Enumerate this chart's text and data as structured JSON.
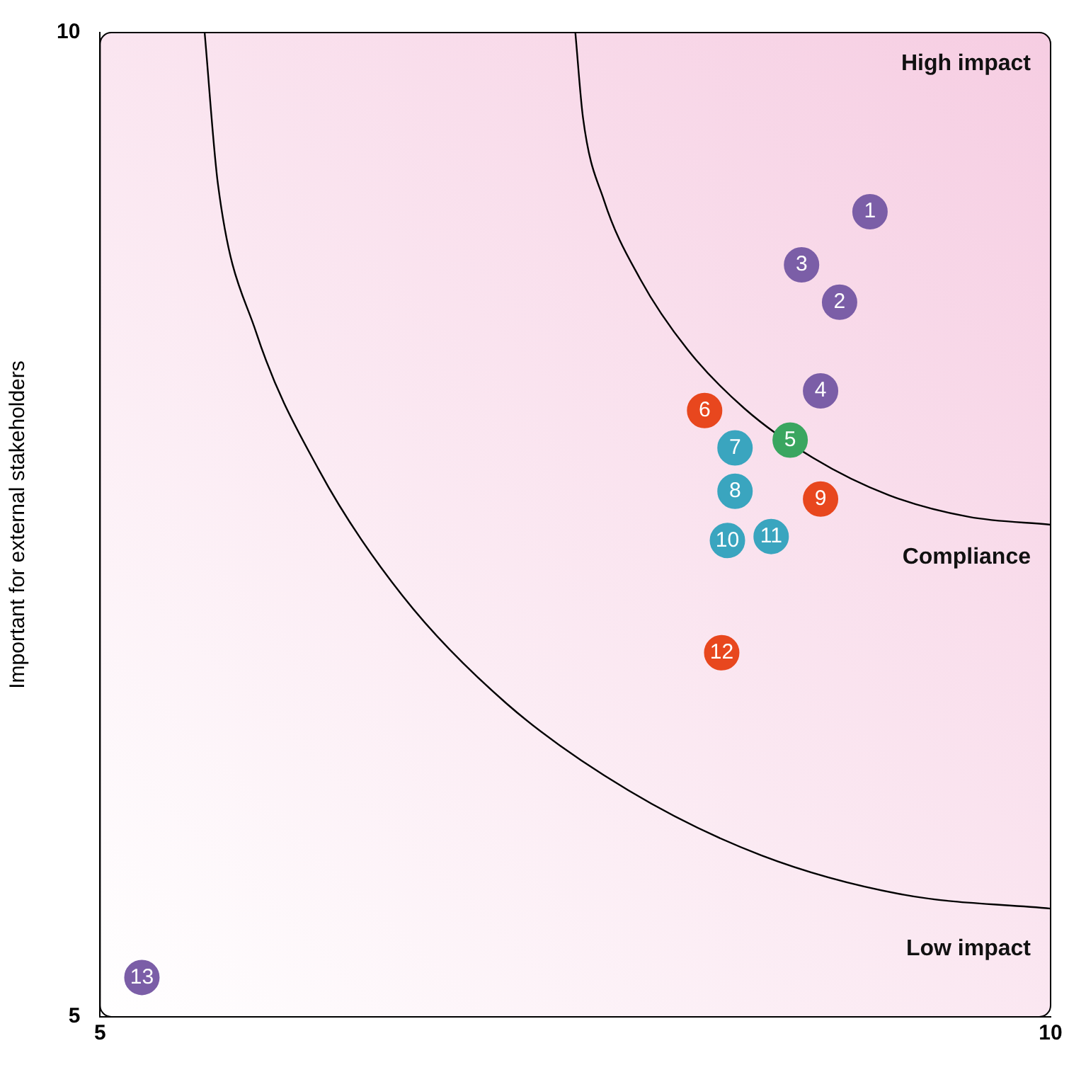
{
  "chart_data": {
    "type": "scatter",
    "ylabel": "Important for external stakeholders",
    "xlim": [
      5,
      10
    ],
    "ylim": [
      5,
      10
    ],
    "xticks": [
      5,
      10
    ],
    "yticks": [
      5,
      10
    ],
    "grid": false,
    "legend": false,
    "marker": "circle",
    "series": [
      {
        "color": "#7b5ea7",
        "x": [
          9.05,
          8.89,
          8.69,
          8.79,
          5.22
        ],
        "values": [
          9.09,
          8.63,
          8.82,
          8.18,
          5.2
        ]
      },
      {
        "color": "#3aa660",
        "x": [
          8.63
        ],
        "values": [
          7.93
        ]
      },
      {
        "color": "#e8471e",
        "x": [
          8.18,
          8.79,
          8.27
        ],
        "values": [
          8.08,
          7.63,
          6.85
        ]
      },
      {
        "color": "#3aa5bf",
        "x": [
          8.34,
          8.34,
          8.3,
          8.53
        ],
        "values": [
          7.89,
          7.67,
          7.42,
          7.44
        ]
      },
      {
        "type": "line",
        "color": "#000000",
        "marker": "none",
        "x": [
          7.5,
          7.54,
          7.65,
          7.84,
          8.09,
          8.39,
          8.75,
          9.15,
          9.57,
          10
        ],
        "values": [
          10,
          9.57,
          9.15,
          8.75,
          8.39,
          8.09,
          7.84,
          7.65,
          7.54,
          7.5
        ]
      },
      {
        "type": "line",
        "color": "#000000",
        "marker": "none",
        "x": [
          5.55,
          5.62,
          5.82,
          6.15,
          6.59,
          7.14,
          7.78,
          8.48,
          9.23,
          10
        ],
        "values": [
          10,
          9.23,
          8.48,
          7.78,
          7.14,
          6.59,
          6.15,
          5.82,
          5.62,
          5.55
        ]
      }
    ],
    "annotations": [
      {
        "text": "1",
        "x": 9.05,
        "y": 9.09
      },
      {
        "text": "2",
        "x": 8.89,
        "y": 8.63
      },
      {
        "text": "3",
        "x": 8.69,
        "y": 8.82
      },
      {
        "text": "4",
        "x": 8.79,
        "y": 8.18
      },
      {
        "text": "5",
        "x": 8.63,
        "y": 7.93
      },
      {
        "text": "6",
        "x": 8.18,
        "y": 8.08
      },
      {
        "text": "7",
        "x": 8.34,
        "y": 7.89
      },
      {
        "text": "8",
        "x": 8.34,
        "y": 7.67
      },
      {
        "text": "9",
        "x": 8.79,
        "y": 7.63
      },
      {
        "text": "10",
        "x": 8.3,
        "y": 7.42
      },
      {
        "text": "11",
        "x": 8.53,
        "y": 7.44
      },
      {
        "text": "12",
        "x": 8.27,
        "y": 6.85
      },
      {
        "text": "13",
        "x": 5.22,
        "y": 5.2
      },
      "High impact",
      "Compliance",
      "Low impact"
    ]
  }
}
